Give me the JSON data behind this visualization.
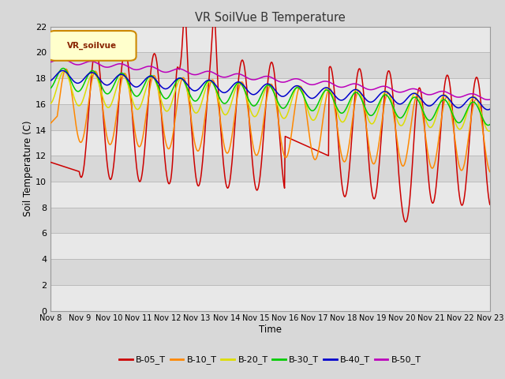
{
  "title": "VR SoilVue B Temperature",
  "xlabel": "Time",
  "ylabel": "Soil Temperature (C)",
  "ylim": [
    0,
    22
  ],
  "yticks": [
    0,
    2,
    4,
    6,
    8,
    10,
    12,
    14,
    16,
    18,
    20,
    22
  ],
  "x_labels": [
    "Nov 8",
    "Nov 9",
    "Nov 10",
    "Nov 11",
    "Nov 12",
    "Nov 13",
    "Nov 14",
    "Nov 15",
    "Nov 16",
    "Nov 17",
    "Nov 18",
    "Nov 19",
    "Nov 20",
    "Nov 21",
    "Nov 22",
    "Nov 23"
  ],
  "legend_label": "VR_soilvue",
  "colors": [
    "#cc0000",
    "#ff8800",
    "#dddd00",
    "#00cc00",
    "#0000cc",
    "#bb00bb"
  ],
  "series_labels": [
    "B-05_T",
    "B-10_T",
    "B-20_T",
    "B-30_T",
    "B-40_T",
    "B-50_T"
  ],
  "bg_color": "#d8d8d8",
  "band_light": "#e8e8e8",
  "band_dark": "#d0d0d0",
  "grid_line_color": "#cccccc"
}
